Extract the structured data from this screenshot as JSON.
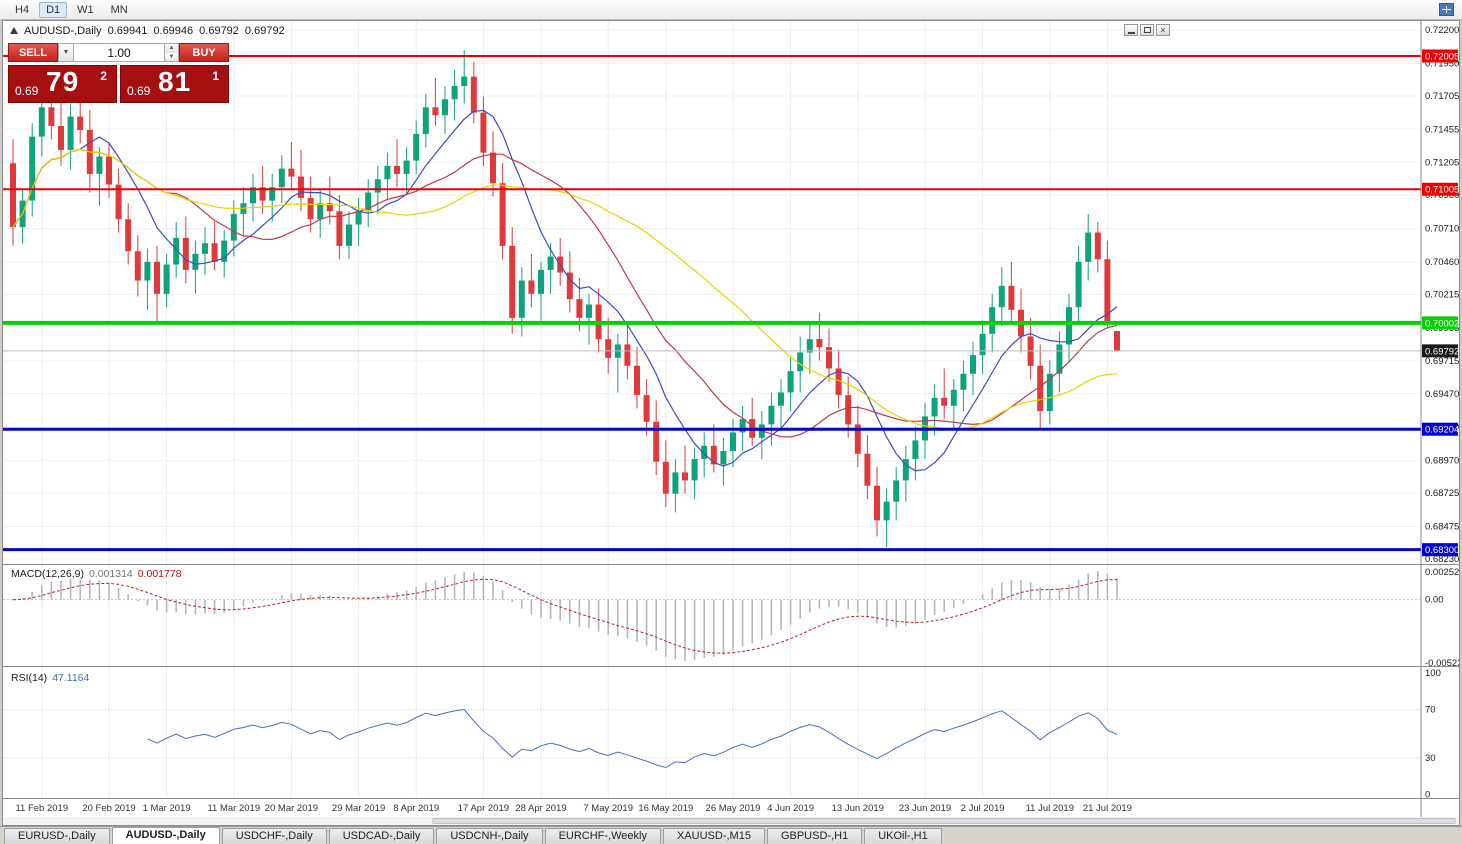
{
  "toolbar": {
    "timeframes": [
      "H4",
      "D1",
      "W1",
      "MN"
    ],
    "active": "D1"
  },
  "window": {
    "symbol_period": "AUDUSD-,Daily",
    "open": "0.69941",
    "high": "0.69946",
    "low": "0.69792",
    "close": "0.69792"
  },
  "one_click": {
    "sell_label": "SELL",
    "buy_label": "BUY",
    "volume": "1.00",
    "sell_price_prefix": "0.69",
    "sell_price_big": "79",
    "sell_price_sup": "2",
    "buy_price_prefix": "0.69",
    "buy_price_big": "81",
    "buy_price_sup": "1"
  },
  "tabs": {
    "items": [
      "EURUSD-,Daily",
      "AUDUSD-,Daily",
      "USDCHF-,Daily",
      "USDCAD-,Daily",
      "USDCNH-,Daily",
      "EURCHF-,Weekly",
      "XAUUSD-,M15",
      "GBPUSD-,H1",
      "UKOil-,H1"
    ],
    "active_index": 1
  },
  "chart_data": {
    "type": "candlestick",
    "symbol": "AUDUSD-",
    "timeframe": "Daily",
    "colors": {
      "up": "#0fa37c",
      "down": "#df3a3a"
    },
    "price_ticks": [
      0.722,
      0.7195,
      0.71705,
      0.71455,
      0.71205,
      0.7096,
      0.7071,
      0.7046,
      0.70215,
      0.69965,
      0.69715,
      0.6947,
      0.6922,
      0.6897,
      0.68725,
      0.68475,
      0.6823
    ],
    "hlines": [
      {
        "price": 0.72005,
        "color": "#ee0000",
        "width": 2,
        "label": "0.72005"
      },
      {
        "price": 0.71005,
        "color": "#ee0000",
        "width": 2,
        "label": "0.71005"
      },
      {
        "price": 0.70002,
        "color": "#00d300",
        "width": 4,
        "label": "0.70002"
      },
      {
        "price": 0.69204,
        "color": "#0000cc",
        "width": 3,
        "label": "0.69204"
      },
      {
        "price": 0.683,
        "color": "#0000cc",
        "width": 3,
        "label": "0.68300"
      }
    ],
    "current_price": {
      "value": 0.69792,
      "label": "0.69792"
    },
    "ma": [
      {
        "period": 8,
        "color": "#3b4cc8"
      },
      {
        "period": 17,
        "color": "#c23a46"
      },
      {
        "period": 34,
        "color": "#e8d400"
      }
    ],
    "macd": {
      "label": "MACD(12,26,9)",
      "value_main": "0.001314",
      "value_signal": "0.001778",
      "fast": 12,
      "slow": 26,
      "signal": 9,
      "axis_labels": [
        "0.00252",
        "0.00",
        "-0.00523"
      ]
    },
    "rsi": {
      "label": "RSI(14)",
      "value": "47.1164",
      "period": 14,
      "levels": [
        70,
        30
      ],
      "axis_labels": [
        "100",
        "70",
        "30",
        "0"
      ]
    },
    "date_labels": [
      {
        "text": "11 Feb 2019",
        "index": 3
      },
      {
        "text": "20 Feb 2019",
        "index": 10
      },
      {
        "text": "1 Mar 2019",
        "index": 16
      },
      {
        "text": "11 Mar 2019",
        "index": 23
      },
      {
        "text": "20 Mar 2019",
        "index": 29
      },
      {
        "text": "29 Mar 2019",
        "index": 36
      },
      {
        "text": "8 Apr 2019",
        "index": 42
      },
      {
        "text": "17 Apr 2019",
        "index": 49
      },
      {
        "text": "28 Apr 2019",
        "index": 55
      },
      {
        "text": "7 May 2019",
        "index": 62
      },
      {
        "text": "16 May 2019",
        "index": 68
      },
      {
        "text": "26 May 2019",
        "index": 75
      },
      {
        "text": "4 Jun 2019",
        "index": 81
      },
      {
        "text": "13 Jun 2019",
        "index": 88
      },
      {
        "text": "23 Jun 2019",
        "index": 95
      },
      {
        "text": "2 Jul 2019",
        "index": 101
      },
      {
        "text": "11 Jul 2019",
        "index": 108
      },
      {
        "text": "21 Jul 2019",
        "index": 114
      }
    ],
    "candles": [
      [
        0.712,
        0.7138,
        0.7058,
        0.7072
      ],
      [
        0.7072,
        0.71,
        0.706,
        0.7092
      ],
      [
        0.7092,
        0.715,
        0.708,
        0.714
      ],
      [
        0.714,
        0.7172,
        0.7125,
        0.7162
      ],
      [
        0.7162,
        0.718,
        0.7138,
        0.7148
      ],
      [
        0.7148,
        0.7168,
        0.7118,
        0.713
      ],
      [
        0.713,
        0.7165,
        0.7115,
        0.7155
      ],
      [
        0.7155,
        0.7178,
        0.7135,
        0.7145
      ],
      [
        0.7145,
        0.716,
        0.7098,
        0.7112
      ],
      [
        0.7112,
        0.7132,
        0.7088,
        0.7125
      ],
      [
        0.7125,
        0.7136,
        0.7094,
        0.7104
      ],
      [
        0.7104,
        0.7116,
        0.7068,
        0.7078
      ],
      [
        0.7078,
        0.709,
        0.7044,
        0.7054
      ],
      [
        0.7054,
        0.7066,
        0.702,
        0.7032
      ],
      [
        0.7032,
        0.7056,
        0.701,
        0.7046
      ],
      [
        0.7046,
        0.7058,
        0.7,
        0.7022
      ],
      [
        0.7022,
        0.7052,
        0.7012,
        0.7044
      ],
      [
        0.7044,
        0.7076,
        0.7034,
        0.7064
      ],
      [
        0.7064,
        0.708,
        0.703,
        0.704
      ],
      [
        0.704,
        0.7062,
        0.7022,
        0.7052
      ],
      [
        0.7052,
        0.7072,
        0.7036,
        0.706
      ],
      [
        0.706,
        0.7076,
        0.704,
        0.7046
      ],
      [
        0.7046,
        0.707,
        0.7034,
        0.7062
      ],
      [
        0.7062,
        0.7092,
        0.705,
        0.7082
      ],
      [
        0.7082,
        0.7102,
        0.7066,
        0.709
      ],
      [
        0.709,
        0.7112,
        0.7076,
        0.7102
      ],
      [
        0.7102,
        0.7118,
        0.7082,
        0.7092
      ],
      [
        0.7092,
        0.7112,
        0.7076,
        0.7102
      ],
      [
        0.7102,
        0.7126,
        0.709,
        0.7116
      ],
      [
        0.7116,
        0.7136,
        0.71,
        0.711
      ],
      [
        0.711,
        0.713,
        0.7084,
        0.7094
      ],
      [
        0.7094,
        0.711,
        0.7068,
        0.7078
      ],
      [
        0.7078,
        0.71,
        0.7064,
        0.709
      ],
      [
        0.709,
        0.711,
        0.7074,
        0.7084
      ],
      [
        0.7084,
        0.7096,
        0.7048,
        0.7058
      ],
      [
        0.7058,
        0.7084,
        0.7048,
        0.7074
      ],
      [
        0.7074,
        0.7094,
        0.7058,
        0.7084
      ],
      [
        0.7084,
        0.7108,
        0.7072,
        0.7098
      ],
      [
        0.7098,
        0.7118,
        0.7082,
        0.7108
      ],
      [
        0.7108,
        0.7128,
        0.7092,
        0.7118
      ],
      [
        0.7118,
        0.7138,
        0.7102,
        0.7112
      ],
      [
        0.7112,
        0.7132,
        0.7096,
        0.7122
      ],
      [
        0.7122,
        0.7152,
        0.7112,
        0.7142
      ],
      [
        0.7142,
        0.7172,
        0.7132,
        0.7162
      ],
      [
        0.7162,
        0.7184,
        0.7148,
        0.7156
      ],
      [
        0.7156,
        0.7178,
        0.7142,
        0.7168
      ],
      [
        0.7168,
        0.719,
        0.7152,
        0.7178
      ],
      [
        0.7178,
        0.7205,
        0.7165,
        0.7185
      ],
      [
        0.7185,
        0.7196,
        0.715,
        0.7158
      ],
      [
        0.7158,
        0.717,
        0.7118,
        0.7128
      ],
      [
        0.7128,
        0.7144,
        0.7095,
        0.7105
      ],
      [
        0.7105,
        0.712,
        0.7048,
        0.7058
      ],
      [
        0.7058,
        0.7072,
        0.6992,
        0.7004
      ],
      [
        0.7004,
        0.7042,
        0.699,
        0.7032
      ],
      [
        0.7032,
        0.7052,
        0.7012,
        0.7022
      ],
      [
        0.7022,
        0.7046,
        0.7002,
        0.704
      ],
      [
        0.704,
        0.706,
        0.7022,
        0.705
      ],
      [
        0.705,
        0.7064,
        0.7028,
        0.7038
      ],
      [
        0.7038,
        0.7054,
        0.7008,
        0.7018
      ],
      [
        0.7018,
        0.7034,
        0.6994,
        0.7004
      ],
      [
        0.7004,
        0.7022,
        0.6984,
        0.7014
      ],
      [
        0.7014,
        0.7026,
        0.6978,
        0.6988
      ],
      [
        0.6988,
        0.7004,
        0.6962,
        0.6974
      ],
      [
        0.6974,
        0.6992,
        0.6948,
        0.6984
      ],
      [
        0.6984,
        0.6998,
        0.6958,
        0.6968
      ],
      [
        0.6968,
        0.6982,
        0.6936,
        0.6946
      ],
      [
        0.6946,
        0.6958,
        0.6916,
        0.6926
      ],
      [
        0.6926,
        0.6942,
        0.6886,
        0.6896
      ],
      [
        0.6896,
        0.6912,
        0.6862,
        0.6872
      ],
      [
        0.6872,
        0.6898,
        0.6858,
        0.6888
      ],
      [
        0.6888,
        0.6908,
        0.6872,
        0.6882
      ],
      [
        0.6882,
        0.6906,
        0.6868,
        0.6898
      ],
      [
        0.6898,
        0.6918,
        0.6884,
        0.6908
      ],
      [
        0.6908,
        0.6924,
        0.6888,
        0.6894
      ],
      [
        0.6894,
        0.6914,
        0.6878,
        0.6904
      ],
      [
        0.6904,
        0.6928,
        0.6892,
        0.6918
      ],
      [
        0.6918,
        0.6938,
        0.6904,
        0.6928
      ],
      [
        0.6928,
        0.6944,
        0.6908,
        0.6914
      ],
      [
        0.6914,
        0.6934,
        0.6898,
        0.6924
      ],
      [
        0.6924,
        0.6948,
        0.6908,
        0.6938
      ],
      [
        0.6938,
        0.6958,
        0.6922,
        0.6948
      ],
      [
        0.6948,
        0.6974,
        0.6934,
        0.6964
      ],
      [
        0.6964,
        0.699,
        0.6948,
        0.6978
      ],
      [
        0.6978,
        0.7,
        0.6962,
        0.6988
      ],
      [
        0.6988,
        0.7008,
        0.6972,
        0.6982
      ],
      [
        0.6982,
        0.6996,
        0.6956,
        0.6966
      ],
      [
        0.6966,
        0.698,
        0.6936,
        0.6946
      ],
      [
        0.6946,
        0.696,
        0.6914,
        0.6924
      ],
      [
        0.6924,
        0.6938,
        0.6892,
        0.6902
      ],
      [
        0.6902,
        0.6916,
        0.6868,
        0.6878
      ],
      [
        0.6878,
        0.6892,
        0.684,
        0.6852
      ],
      [
        0.6852,
        0.6876,
        0.6832,
        0.6866
      ],
      [
        0.6866,
        0.6892,
        0.6852,
        0.6882
      ],
      [
        0.6882,
        0.6908,
        0.6866,
        0.6898
      ],
      [
        0.6898,
        0.6922,
        0.6882,
        0.6912
      ],
      [
        0.6912,
        0.694,
        0.6898,
        0.693
      ],
      [
        0.693,
        0.6954,
        0.6916,
        0.6944
      ],
      [
        0.6944,
        0.6966,
        0.6928,
        0.6938
      ],
      [
        0.6938,
        0.6958,
        0.692,
        0.695
      ],
      [
        0.695,
        0.6972,
        0.6934,
        0.6962
      ],
      [
        0.6962,
        0.6986,
        0.6946,
        0.6976
      ],
      [
        0.6976,
        0.7002,
        0.6962,
        0.6992
      ],
      [
        0.6992,
        0.7022,
        0.6978,
        0.7012
      ],
      [
        0.7012,
        0.7042,
        0.6998,
        0.7028
      ],
      [
        0.7028,
        0.7046,
        0.7,
        0.701
      ],
      [
        0.701,
        0.7026,
        0.6978,
        0.699
      ],
      [
        0.699,
        0.7004,
        0.6958,
        0.6968
      ],
      [
        0.6968,
        0.6984,
        0.692,
        0.6934
      ],
      [
        0.6934,
        0.6972,
        0.6924,
        0.6962
      ],
      [
        0.6962,
        0.6994,
        0.6948,
        0.6984
      ],
      [
        0.6984,
        0.7022,
        0.697,
        0.7012
      ],
      [
        0.7012,
        0.7058,
        0.7,
        0.7046
      ],
      [
        0.7046,
        0.7082,
        0.7032,
        0.7068
      ],
      [
        0.7068,
        0.7076,
        0.7038,
        0.7048
      ],
      [
        0.7048,
        0.7062,
        0.6996,
        0.7
      ],
      [
        0.69941,
        0.69946,
        0.69792,
        0.69792
      ]
    ]
  }
}
